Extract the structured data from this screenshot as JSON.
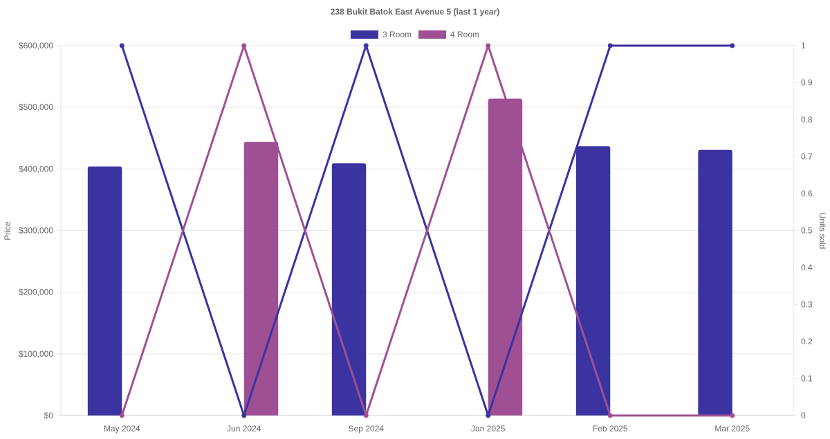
{
  "chart_data": {
    "type": "bar",
    "title": "238 Bukit Batok East Avenue 5 (last 1 year)",
    "categories": [
      "May 2024",
      "Jun 2024",
      "Sep 2024",
      "Jan 2025",
      "Feb 2025",
      "Mar 2025"
    ],
    "y_left": {
      "label": "Price",
      "ylim": [
        0,
        600000
      ],
      "ticks": [
        0,
        100000,
        200000,
        300000,
        400000,
        500000,
        600000
      ],
      "tick_labels": [
        "$0",
        "$100,000",
        "$200,000",
        "$300,000",
        "$400,000",
        "$500,000",
        "$600,000"
      ]
    },
    "y_right": {
      "label": "Units sold",
      "ylim": [
        0,
        1
      ],
      "ticks": [
        0,
        0.1,
        0.2,
        0.3,
        0.4,
        0.5,
        0.6,
        0.7,
        0.8,
        0.9,
        1
      ],
      "tick_labels": [
        "0",
        "0.1",
        "0.2",
        "0.3",
        "0.4",
        "0.5",
        "0.6",
        "0.7",
        "0.8",
        "0.9",
        "1"
      ]
    },
    "legend_position": "top",
    "grid": true,
    "series": [
      {
        "name": "3 Room",
        "color": "#3a33a0",
        "price_values": [
          404000,
          null,
          409000,
          null,
          437000,
          431000
        ],
        "units_values": [
          1,
          0,
          1,
          0,
          1,
          1
        ]
      },
      {
        "name": "4 Room",
        "color": "#9f5094",
        "price_values": [
          null,
          444000,
          null,
          514000,
          null,
          null
        ],
        "units_values": [
          0,
          1,
          0,
          1,
          0,
          0
        ]
      }
    ]
  }
}
